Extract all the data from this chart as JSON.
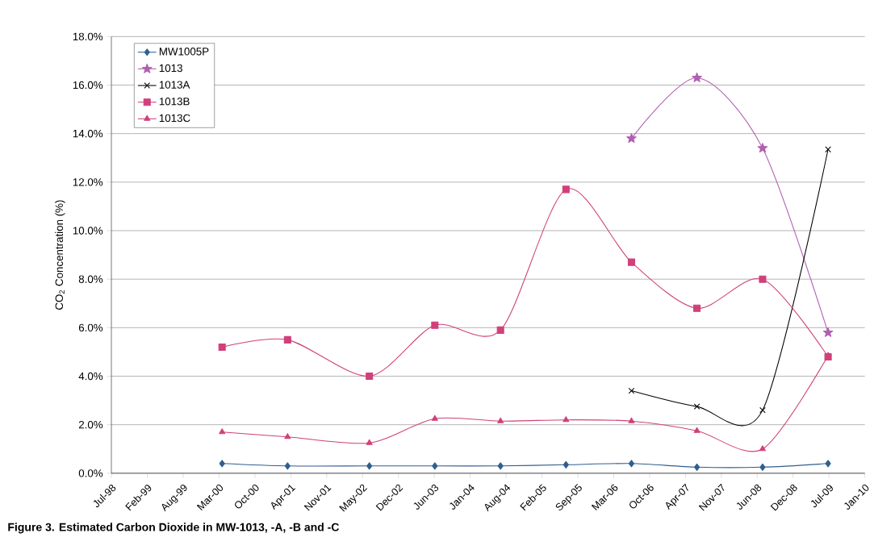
{
  "chart_data": {
    "type": "line",
    "ylabel": "CO$_{2}$ Concentration (%)",
    "annotations": [
      "Figure 3.  Estimated Carbon Dioxide in MW-1013, -A, -B and -C"
    ],
    "xlim": [
      "1998-07-24",
      "2010-01-22"
    ],
    "xticks": [
      {
        "value": "1998-07-24",
        "label": "Jul-98"
      },
      {
        "value": "1999-02-09",
        "label": "Feb-99"
      },
      {
        "value": "1999-08-28",
        "label": "Aug-99"
      },
      {
        "value": "2000-03-15",
        "label": "Mar-00"
      },
      {
        "value": "2000-10-01",
        "label": "Oct-00"
      },
      {
        "value": "2001-04-19",
        "label": "Apr-01"
      },
      {
        "value": "2001-11-05",
        "label": "Nov-01"
      },
      {
        "value": "2002-05-24",
        "label": "May-02"
      },
      {
        "value": "2002-12-10",
        "label": "Dec-02"
      },
      {
        "value": "2003-06-28",
        "label": "Jun-03"
      },
      {
        "value": "2004-01-14",
        "label": "Jan-04"
      },
      {
        "value": "2004-08-01",
        "label": "Aug-04"
      },
      {
        "value": "2005-02-17",
        "label": "Feb-05"
      },
      {
        "value": "2005-09-05",
        "label": "Sep-05"
      },
      {
        "value": "2006-03-24",
        "label": "Mar-06"
      },
      {
        "value": "2006-10-10",
        "label": "Oct-06"
      },
      {
        "value": "2007-04-28",
        "label": "Apr-07"
      },
      {
        "value": "2007-11-14",
        "label": "Nov-07"
      },
      {
        "value": "2008-06-01",
        "label": "Jun-08"
      },
      {
        "value": "2008-12-18",
        "label": "Dec-08"
      },
      {
        "value": "2009-07-06",
        "label": "Jul-09"
      },
      {
        "value": "2010-01-22",
        "label": "Jan-10"
      }
    ],
    "ylim": [
      0,
      18
    ],
    "yticks": [
      {
        "value": 0,
        "label": "0.0%"
      },
      {
        "value": 2,
        "label": "2.0%"
      },
      {
        "value": 4,
        "label": "4.0%"
      },
      {
        "value": 6,
        "label": "6.0%"
      },
      {
        "value": 8,
        "label": "8.0%"
      },
      {
        "value": 10,
        "label": "10.0%"
      },
      {
        "value": 12,
        "label": "12.0%"
      },
      {
        "value": 14,
        "label": "14.0%"
      },
      {
        "value": 16,
        "label": "16.0%"
      },
      {
        "value": 18,
        "label": "18.0%"
      }
    ],
    "grid": "y",
    "legend": "top left",
    "x": [
      "2000-04",
      "2001-04",
      "2002-07",
      "2003-07",
      "2004-07",
      "2005-07",
      "2006-07",
      "2007-07",
      "2008-07",
      "2009-07"
    ],
    "series": [
      {
        "name": "MW1005P",
        "color": "#2f5f8f",
        "marker": "diamond",
        "values": [
          0.4,
          0.3,
          0.3,
          0.3,
          0.3,
          0.35,
          0.4,
          0.25,
          0.25,
          0.4
        ]
      },
      {
        "name": "1013",
        "color": "#b060b0",
        "marker": "star",
        "values": [
          null,
          null,
          null,
          null,
          null,
          null,
          13.8,
          16.3,
          13.4,
          5.8
        ]
      },
      {
        "name": "1013A",
        "color": "#000000",
        "marker": "cross",
        "values": [
          null,
          null,
          null,
          null,
          null,
          null,
          3.4,
          2.75,
          2.6,
          13.35
        ]
      },
      {
        "name": "1013B",
        "color": "#d0407a",
        "marker": "square",
        "values": [
          5.2,
          5.5,
          4.0,
          6.1,
          5.9,
          11.7,
          8.7,
          6.8,
          8.0,
          4.8
        ]
      },
      {
        "name": "1013C",
        "color": "#d0407a",
        "marker": "triangle",
        "values": [
          1.7,
          1.5,
          1.25,
          2.25,
          2.15,
          2.2,
          2.15,
          1.75,
          1.0,
          4.85
        ]
      }
    ]
  }
}
